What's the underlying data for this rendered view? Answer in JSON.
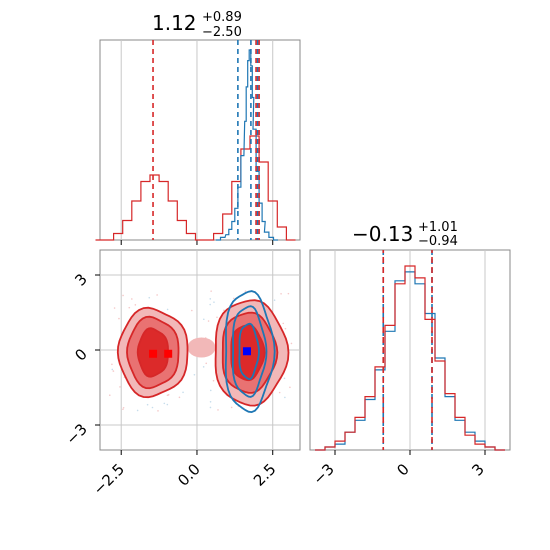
{
  "colors": {
    "red": "#d62728",
    "blue": "#1f77b4",
    "red_fill_outer": "#f2b8b8",
    "red_fill_mid": "#e97272",
    "red_fill_inner": "#dc2a2a",
    "grid": "#c8c8c8",
    "spine": "#888888",
    "median_red": "#ff0000",
    "median_blue": "#0000ff"
  },
  "chart_data": [
    {
      "type": "histogram",
      "panel": "x-marginal",
      "title": {
        "value": "1.12",
        "plus": "+0.89",
        "minus": "−2.50"
      },
      "xlim": [
        -3.2,
        3.4
      ],
      "xticks": [
        -2.5,
        0.0,
        2.5
      ],
      "dashed_lines": {
        "red": [
          -1.45,
          1.95,
          2.05
        ],
        "blue": [
          1.35,
          1.78,
          2.0
        ]
      },
      "series": [
        {
          "color": "red",
          "centers": [
            -3.2,
            -2.9,
            -2.6,
            -2.3,
            -2.0,
            -1.7,
            -1.4,
            -1.1,
            -0.8,
            -0.5,
            -0.2,
            0.1,
            0.4,
            0.7,
            1.0,
            1.3,
            1.6,
            1.9,
            2.2,
            2.5,
            2.8,
            3.1
          ],
          "values": [
            0,
            0,
            1,
            3,
            6,
            9,
            10,
            9,
            6,
            3,
            1,
            0,
            0,
            1,
            4,
            9,
            14,
            16,
            12,
            6,
            2,
            0
          ]
        },
        {
          "color": "blue",
          "centers": [
            0.7,
            0.85,
            1.0,
            1.1,
            1.2,
            1.3,
            1.4,
            1.5,
            1.6,
            1.65,
            1.7,
            1.75,
            1.8,
            1.85,
            1.9,
            2.0,
            2.1,
            2.2,
            2.3,
            2.45,
            2.6
          ],
          "values": [
            0,
            1,
            2,
            4,
            7,
            12,
            20,
            32,
            45,
            58,
            68,
            72,
            66,
            54,
            42,
            26,
            14,
            7,
            3,
            1,
            0
          ]
        }
      ]
    },
    {
      "type": "histogram",
      "panel": "y-marginal",
      "title": {
        "value": "−0.13",
        "plus": "+1.01",
        "minus": "−0.94"
      },
      "xlim": [
        -4.0,
        4.0
      ],
      "xticks": [
        -3,
        0,
        3
      ],
      "dashed_lines": {
        "red": [
          -1.07,
          0.88
        ],
        "blue": [
          -1.07,
          0.88
        ]
      },
      "series": [
        {
          "color": "red",
          "centers": [
            -3.6,
            -3.2,
            -2.8,
            -2.4,
            -2.0,
            -1.6,
            -1.2,
            -0.8,
            -0.4,
            0.0,
            0.4,
            0.8,
            1.2,
            1.6,
            2.0,
            2.4,
            2.8,
            3.2,
            3.6
          ],
          "values": [
            0,
            1,
            3,
            6,
            11,
            18,
            28,
            42,
            56,
            62,
            58,
            44,
            30,
            19,
            11,
            5,
            2,
            1,
            0
          ]
        },
        {
          "color": "blue",
          "centers": [
            -3.6,
            -3.2,
            -2.8,
            -2.4,
            -2.0,
            -1.6,
            -1.2,
            -0.8,
            -0.4,
            0.0,
            0.4,
            0.8,
            1.2,
            1.6,
            2.0,
            2.4,
            2.8,
            3.2,
            3.6
          ],
          "values": [
            0,
            1,
            2,
            6,
            10,
            17,
            27,
            40,
            57,
            60,
            56,
            46,
            31,
            18,
            10,
            6,
            3,
            1,
            0
          ]
        }
      ]
    },
    {
      "type": "contour",
      "panel": "2d",
      "xlim": [
        -3.2,
        3.4
      ],
      "ylim": [
        -4.0,
        4.0
      ],
      "xticks": [
        -2.5,
        0.0,
        2.5
      ],
      "yticks": [
        -3,
        0,
        3
      ],
      "red_modes": [
        [
          -1.45,
          -0.15
        ],
        [
          1.7,
          0.0
        ]
      ],
      "red_median_markers": [
        [
          -1.45,
          -0.15
        ],
        [
          -0.95,
          -0.15
        ]
      ],
      "blue_median_markers": [
        [
          1.65,
          -0.05
        ]
      ],
      "red_levels": [
        {
          "cx": -1.45,
          "cy": -0.1,
          "rx": 1.15,
          "ry": 1.75
        },
        {
          "cx": -1.45,
          "cy": -0.1,
          "rx": 0.85,
          "ry": 1.4
        },
        {
          "cx": -1.45,
          "cy": -0.1,
          "rx": 0.5,
          "ry": 0.95
        },
        {
          "cx": 1.75,
          "cy": -0.1,
          "rx": 1.2,
          "ry": 2.1
        },
        {
          "cx": 1.7,
          "cy": -0.1,
          "rx": 0.9,
          "ry": 1.6
        },
        {
          "cx": 1.65,
          "cy": -0.1,
          "rx": 0.55,
          "ry": 1.1
        }
      ],
      "blue_levels": [
        {
          "cx": 1.7,
          "cy": -0.05,
          "rx": 0.8,
          "ry": 2.4
        },
        {
          "cx": 1.7,
          "cy": -0.05,
          "rx": 0.55,
          "ry": 1.8
        },
        {
          "cx": 1.7,
          "cy": -0.05,
          "rx": 0.32,
          "ry": 1.1
        }
      ]
    }
  ]
}
